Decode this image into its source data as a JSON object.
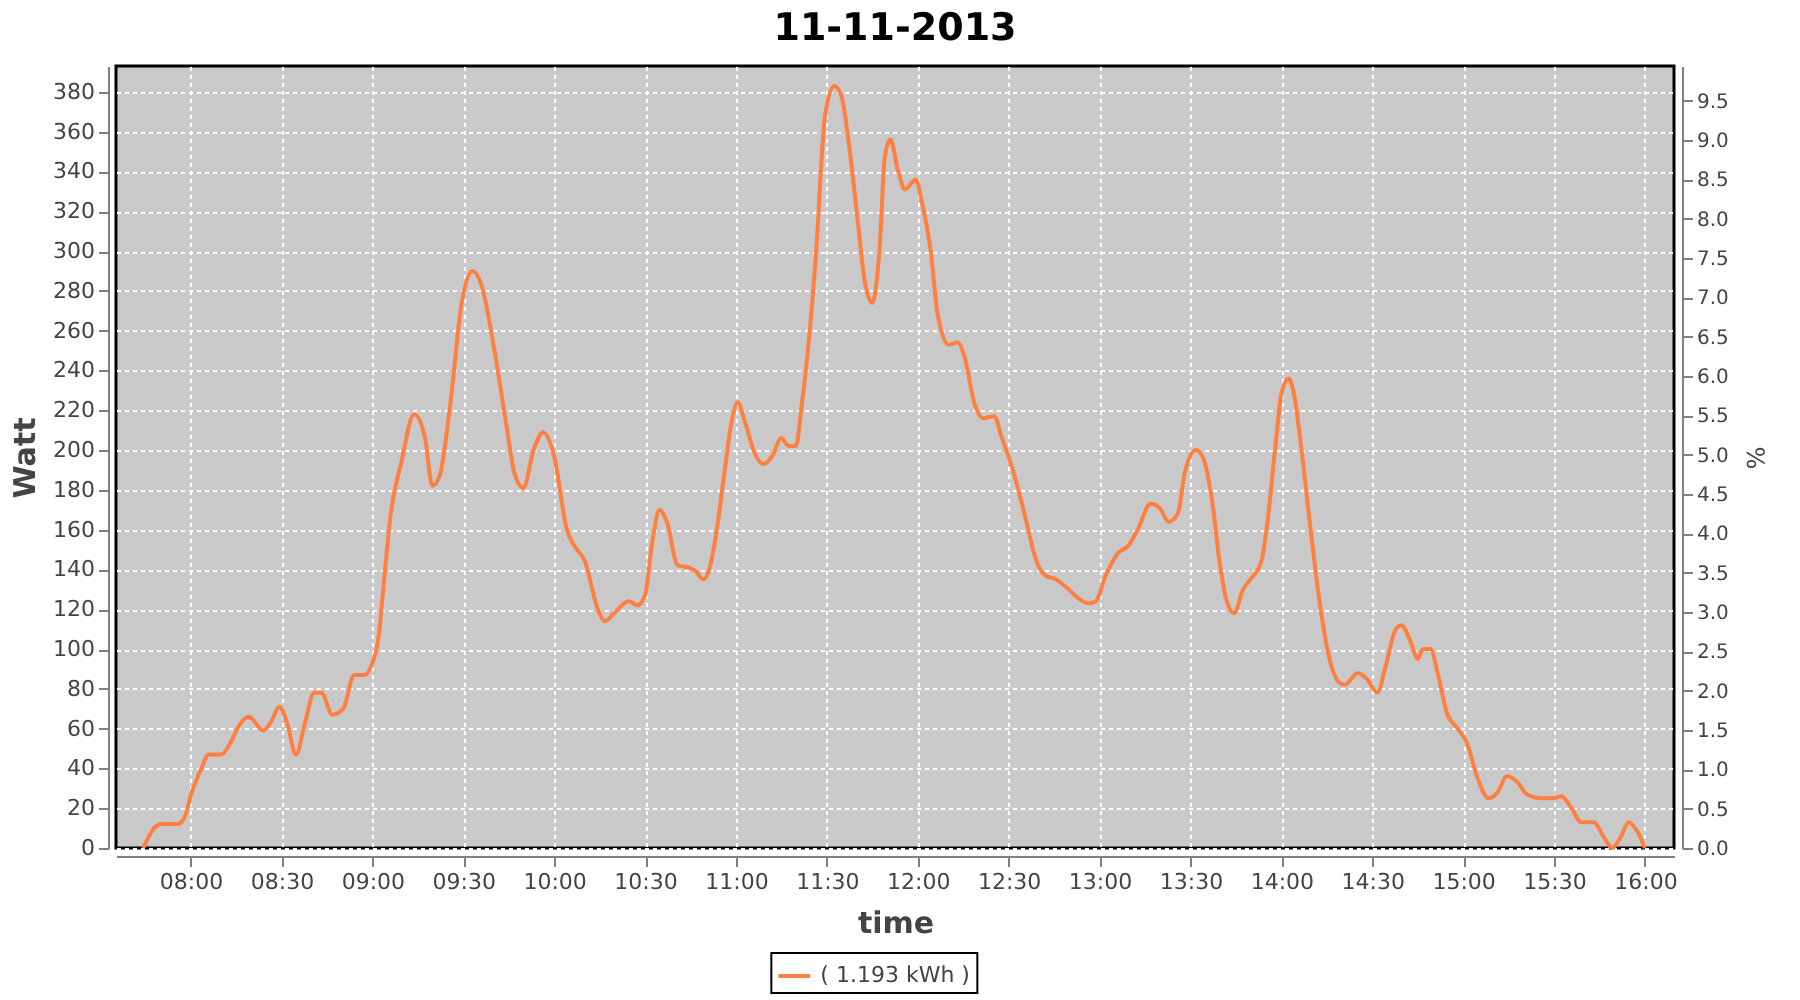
{
  "chart_data": {
    "type": "line",
    "title": "11-11-2013",
    "xlabel": "time",
    "ylabel": "Watt",
    "y2label": "%",
    "x": [
      7.74,
      7.8,
      7.84,
      7.93,
      7.97,
      8.0,
      8.06,
      8.1,
      8.17,
      8.22,
      8.27,
      8.32,
      8.4,
      8.44,
      8.49,
      8.53,
      8.58,
      8.63,
      8.68,
      8.72,
      8.78,
      8.84,
      8.9,
      8.96,
      9.0,
      9.03,
      9.07,
      9.1,
      9.16,
      9.23,
      9.29,
      9.33,
      9.37,
      9.43,
      9.49,
      9.55,
      9.6,
      9.67,
      9.74,
      9.78,
      9.83,
      9.89,
      9.94,
      10.0,
      10.07,
      10.11,
      10.17,
      10.24,
      10.28,
      10.33,
      10.41,
      10.46,
      10.5,
      10.54,
      10.58,
      10.62,
      10.68,
      10.74,
      10.78,
      10.82,
      10.85,
      10.89,
      10.94,
      10.98,
      11.01,
      11.05,
      11.1,
      11.15,
      11.2,
      11.25,
      11.29,
      11.33,
      11.36,
      11.4,
      11.44,
      11.49,
      11.54,
      11.58,
      11.62,
      11.67,
      11.71,
      11.75,
      11.79,
      11.82,
      11.85,
      11.89,
      11.93,
      11.99,
      12.02,
      12.07,
      12.11,
      12.17,
      12.22,
      12.26,
      12.31,
      12.36,
      12.42,
      12.46,
      12.52,
      12.59,
      12.65,
      12.7,
      12.76,
      12.83,
      12.89,
      12.94,
      12.98,
      13.03,
      13.1,
      13.16,
      13.21,
      13.28,
      13.33,
      13.38,
      13.43,
      13.47,
      13.53,
      13.57,
      13.62,
      13.66,
      13.7,
      13.74,
      13.79,
      13.83,
      13.89,
      13.92,
      13.97,
      14.0,
      14.04,
      14.07,
      14.11,
      14.16,
      14.21,
      14.26,
      14.32,
      14.35,
      14.42,
      14.47,
      14.53,
      14.57,
      14.63,
      14.66,
      14.71,
      14.75,
      14.78,
      14.82,
      14.86,
      14.91,
      14.97,
      15.02,
      15.08,
      15.14,
      15.19,
      15.24,
      15.3,
      15.35,
      15.43,
      15.49,
      15.54,
      15.59,
      15.65,
      15.72,
      15.77,
      15.82,
      15.87,
      15.91,
      15.96,
      16.0
    ],
    "series": [
      {
        "name": "( 1.193 kWh )",
        "color": "#ff7f40",
        "values": [
          0,
          10,
          12,
          12,
          16,
          26,
          40,
          47,
          47,
          53,
          62,
          66,
          59,
          63,
          71,
          63,
          47,
          63,
          78,
          78,
          67,
          70,
          87,
          87,
          93,
          103,
          140,
          167,
          194,
          218,
          206,
          182,
          187,
          224,
          273,
          290,
          283,
          251,
          211,
          189,
          181,
          201,
          209,
          197,
          160,
          152,
          144,
          120,
          114,
          118,
          124,
          122,
          127,
          154,
          170,
          164,
          142,
          141,
          139,
          135,
          139,
          157,
          191,
          216,
          224,
          214,
          199,
          193,
          197,
          206,
          202,
          202,
          221,
          254,
          298,
          368,
          383,
          378,
          355,
          315,
          284,
          274,
          301,
          348,
          356,
          341,
          331,
          336,
          326,
          301,
          268,
          253,
          254,
          246,
          224,
          216,
          217,
          207,
          191,
          167,
          145,
          137,
          135,
          130,
          125,
          123,
          124,
          136,
          148,
          152,
          160,
          173,
          171,
          164,
          168,
          189,
          200,
          196,
          174,
          144,
          124,
          118,
          130,
          135,
          144,
          161,
          204,
          228,
          236,
          228,
          201,
          161,
          124,
          97,
          83,
          82,
          88,
          85,
          78,
          90,
          110,
          112,
          104,
          95,
          100,
          100,
          88,
          68,
          60,
          53,
          35,
          25,
          28,
          36,
          33,
          27,
          25,
          25,
          26,
          21,
          13,
          13,
          6,
          0,
          6,
          13,
          8,
          0
        ]
      }
    ],
    "xlim": [
      7.59,
      16.16
    ],
    "xticks": [
      {
        "value": 8,
        "label": "08:00"
      },
      {
        "value": 8.5,
        "label": "08:30"
      },
      {
        "value": 9,
        "label": "09:00"
      },
      {
        "value": 9.5,
        "label": "09:30"
      },
      {
        "value": 10,
        "label": "10:00"
      },
      {
        "value": 10.5,
        "label": "10:30"
      },
      {
        "value": 11,
        "label": "11:00"
      },
      {
        "value": 11.5,
        "label": "11:30"
      },
      {
        "value": 12,
        "label": "12:00"
      },
      {
        "value": 12.5,
        "label": "12:30"
      },
      {
        "value": 13,
        "label": "13:00"
      },
      {
        "value": 13.5,
        "label": "13:30"
      },
      {
        "value": 14,
        "label": "14:00"
      },
      {
        "value": 14.5,
        "label": "14:30"
      },
      {
        "value": 15,
        "label": "15:00"
      },
      {
        "value": 15.5,
        "label": "15:30"
      },
      {
        "value": 16,
        "label": "16:00"
      }
    ],
    "ylim": [
      0,
      393
    ],
    "yticks": [
      0,
      20,
      40,
      60,
      80,
      100,
      120,
      140,
      160,
      180,
      200,
      220,
      240,
      260,
      280,
      300,
      320,
      340,
      360,
      380
    ],
    "y2lim": [
      0,
      9.94
    ],
    "y2ticks": [
      {
        "value": 0,
        "label": "0.0"
      },
      {
        "value": 0.5,
        "label": "0.5"
      },
      {
        "value": 1,
        "label": "1.0"
      },
      {
        "value": 1.5,
        "label": "1.5"
      },
      {
        "value": 2,
        "label": "2.0"
      },
      {
        "value": 2.5,
        "label": "2.5"
      },
      {
        "value": 3,
        "label": "3.0"
      },
      {
        "value": 3.5,
        "label": "3.5"
      },
      {
        "value": 4,
        "label": "4.0"
      },
      {
        "value": 4.5,
        "label": "4.5"
      },
      {
        "value": 5,
        "label": "5.0"
      },
      {
        "value": 5.5,
        "label": "5.5"
      },
      {
        "value": 6,
        "label": "6.0"
      },
      {
        "value": 6.5,
        "label": "6.5"
      },
      {
        "value": 7,
        "label": "7.0"
      },
      {
        "value": 7.5,
        "label": "7.5"
      },
      {
        "value": 8,
        "label": "8.0"
      },
      {
        "value": 8.5,
        "label": "8.5"
      },
      {
        "value": 9,
        "label": "9.0"
      },
      {
        "value": 9.5,
        "label": "9.5"
      }
    ],
    "grid": true,
    "legend": "bottom",
    "line_style": "solid"
  }
}
